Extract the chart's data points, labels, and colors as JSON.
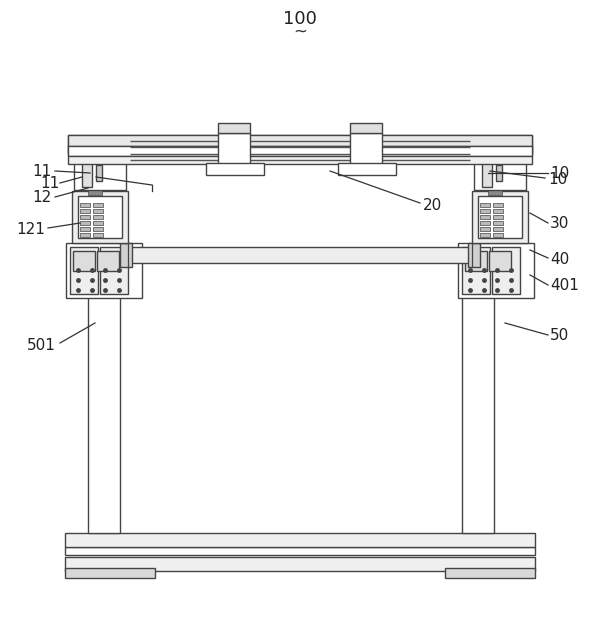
{
  "bg_color": "#ffffff",
  "lc": "#444444",
  "lw": 1.0,
  "fig_w": 6.0,
  "fig_h": 6.33
}
